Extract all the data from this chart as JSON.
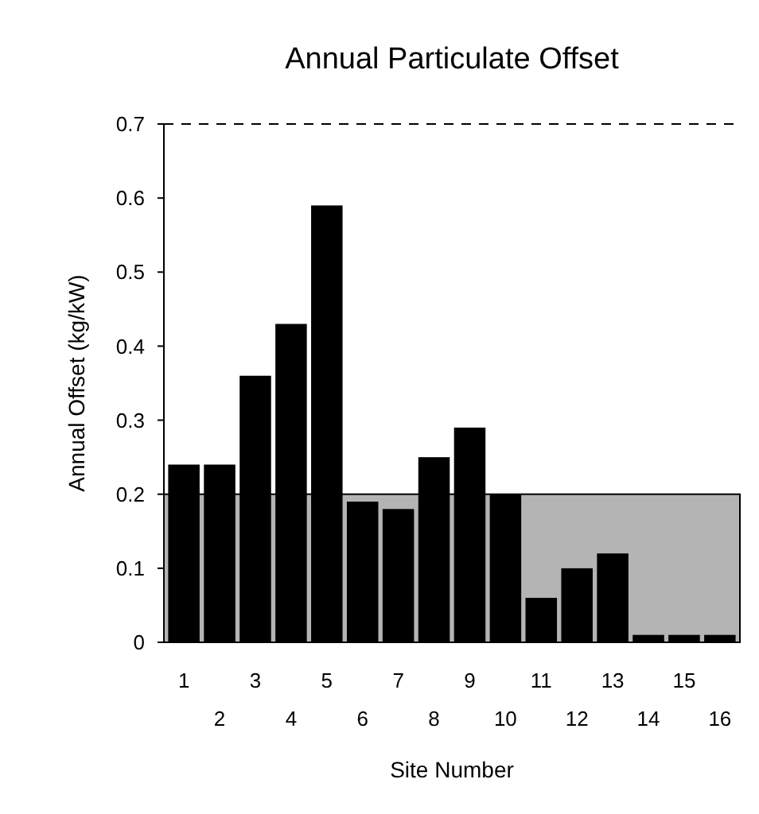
{
  "chart_data": {
    "type": "bar",
    "title": "Annual Particulate Offset",
    "xlabel": "Site Number",
    "ylabel": "Annual Offset (kg/kW)",
    "categories": [
      "1",
      "2",
      "3",
      "4",
      "5",
      "6",
      "7",
      "8",
      "9",
      "10",
      "11",
      "12",
      "13",
      "14",
      "15",
      "16"
    ],
    "values": [
      0.24,
      0.24,
      0.36,
      0.43,
      0.59,
      0.19,
      0.18,
      0.25,
      0.29,
      0.2,
      0.06,
      0.1,
      0.12,
      0.01,
      0.01,
      0.01
    ],
    "color": "#000000",
    "ylim": [
      0,
      0.7
    ],
    "yticks": [
      0,
      0.1,
      0.2,
      0.3,
      0.4,
      0.5,
      0.6,
      0.7
    ],
    "bands": [
      {
        "axis": "y",
        "from": 0,
        "to": 0.2,
        "color": "#b4b4b4"
      }
    ]
  }
}
